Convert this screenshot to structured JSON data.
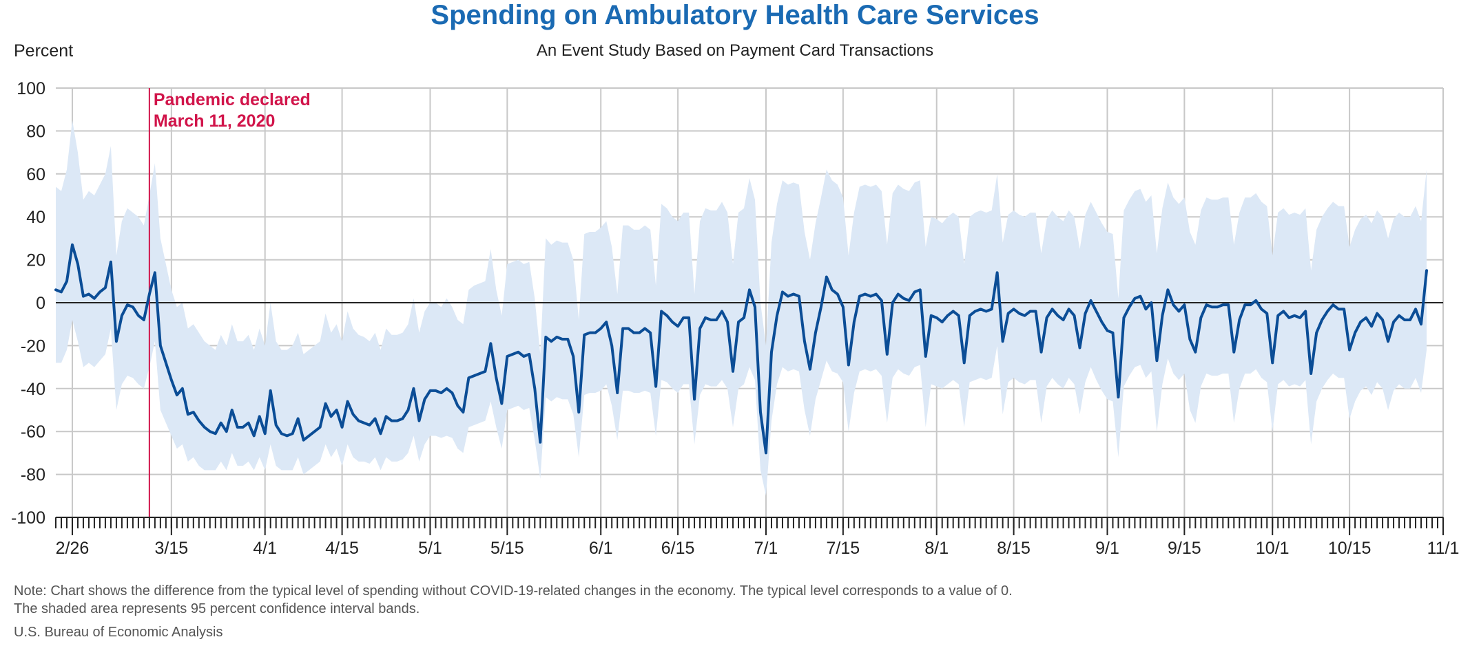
{
  "header": {
    "title": "Spending on Ambulatory Health Care Services",
    "subtitle": "An Event Study Based on Payment Card Transactions",
    "y_unit_label": "Percent"
  },
  "footer": {
    "note_line1": "Note: Chart shows the difference from the typical level of spending without COVID-19-related changes in the economy. The typical level corresponds to a value of 0.",
    "note_line2": "The shaded area represents 95 percent confidence interval bands.",
    "source": "U.S. Bureau of Economic Analysis"
  },
  "colors": {
    "title": "#1a6ab3",
    "line": "#0b4d96",
    "band": "#dce8f6",
    "annotation": "#d1144a",
    "grid": "#c8c8c8"
  },
  "chart_data": {
    "type": "line",
    "title": "Spending on Ambulatory Health Care Services",
    "subtitle": "An Event Study Based on Payment Card Transactions",
    "ylabel": "Percent",
    "xlabel": "",
    "ylim": [
      -100,
      100
    ],
    "yticks": [
      100,
      80,
      60,
      40,
      20,
      0,
      -20,
      -40,
      -60,
      -80,
      -100
    ],
    "x_start_date": "2020-02-23",
    "x_end_date": "2020-11-01",
    "xticks": [
      {
        "date": "2020-02-26",
        "label": "2/26"
      },
      {
        "date": "2020-03-15",
        "label": "3/15"
      },
      {
        "date": "2020-04-01",
        "label": "4/1"
      },
      {
        "date": "2020-04-15",
        "label": "4/15"
      },
      {
        "date": "2020-05-01",
        "label": "5/1"
      },
      {
        "date": "2020-05-15",
        "label": "5/15"
      },
      {
        "date": "2020-06-01",
        "label": "6/1"
      },
      {
        "date": "2020-06-15",
        "label": "6/15"
      },
      {
        "date": "2020-07-01",
        "label": "7/1"
      },
      {
        "date": "2020-07-15",
        "label": "7/15"
      },
      {
        "date": "2020-08-01",
        "label": "8/1"
      },
      {
        "date": "2020-08-15",
        "label": "8/15"
      },
      {
        "date": "2020-09-01",
        "label": "9/1"
      },
      {
        "date": "2020-09-15",
        "label": "9/15"
      },
      {
        "date": "2020-10-01",
        "label": "10/1"
      },
      {
        "date": "2020-10-15",
        "label": "10/15"
      },
      {
        "date": "2020-11-01",
        "label": "11/1"
      }
    ],
    "grid": true,
    "legend": "none",
    "annotation": {
      "date": "2020-03-11",
      "line1": "Pandemic declared",
      "line2": "March 11, 2020"
    },
    "series": [
      {
        "values": [
          6,
          5,
          10,
          27,
          18,
          3,
          4,
          2,
          5,
          7,
          19,
          -18,
          -6,
          -1,
          -2,
          -6,
          -8,
          4,
          14,
          -20,
          -28,
          -36,
          -43,
          -40,
          -52,
          -51,
          -55,
          -58,
          -60,
          -61,
          -56,
          -60,
          -50,
          -58,
          -58,
          -56,
          -62,
          -53,
          -61,
          -41,
          -57,
          -61,
          -62,
          -61,
          -54,
          -64,
          -62,
          -60,
          -58,
          -47,
          -53,
          -50,
          -58,
          -46,
          -52,
          -55,
          -56,
          -57,
          -54,
          -61,
          -53,
          -55,
          -55,
          -54,
          -50,
          -40,
          -55,
          -45,
          -41,
          -41,
          -42,
          -40,
          -42,
          -48,
          -51,
          -35,
          -34,
          -33,
          -32,
          -19,
          -35,
          -47,
          -25,
          -24,
          -23,
          -25,
          -24,
          -40,
          -65,
          -16,
          -18,
          -16,
          -17,
          -17,
          -25,
          -51,
          -15,
          -14,
          -14,
          -12,
          -9,
          -20,
          -42,
          -12,
          -12,
          -14,
          -14,
          -12,
          -14,
          -39,
          -4,
          -6,
          -9,
          -11,
          -7,
          -7,
          -45,
          -12,
          -7,
          -8,
          -8,
          -4,
          -9,
          -32,
          -9,
          -7,
          6,
          -2,
          -51,
          -70,
          -23,
          -6,
          5,
          3,
          4,
          3,
          -18,
          -31,
          -14,
          -2,
          12,
          6,
          4,
          -2,
          -29,
          -9,
          3,
          4,
          3,
          4,
          1,
          -24,
          0,
          4,
          2,
          1,
          5,
          6,
          -25,
          -6,
          -7,
          -9,
          -6,
          -4,
          -6,
          -28,
          -6,
          -4,
          -3,
          -4,
          -3,
          14,
          -18,
          -5,
          -3,
          -5,
          -6,
          -4,
          -4,
          -23,
          -7,
          -3,
          -6,
          -8,
          -3,
          -6,
          -21,
          -5,
          1,
          -4,
          -9,
          -13,
          -14,
          -44,
          -7,
          -2,
          2,
          3,
          -3,
          0,
          -27,
          -6,
          6,
          -1,
          -4,
          -1,
          -17,
          -23,
          -7,
          -1,
          -2,
          -2,
          -1,
          -1,
          -23,
          -8,
          -1,
          -1,
          1,
          -3,
          -5,
          -28,
          -6,
          -4,
          -7,
          -6,
          -7,
          -4,
          -33,
          -14,
          -8,
          -4,
          -1,
          -3,
          -3,
          -22,
          -14,
          -9,
          -7,
          -11,
          -5,
          -8,
          -18,
          -9,
          -6,
          -8,
          -8,
          -3,
          -10,
          15
        ],
        "ci_upper": [
          54,
          52,
          62,
          85,
          70,
          48,
          52,
          50,
          55,
          60,
          73,
          22,
          38,
          44,
          42,
          40,
          36,
          50,
          65,
          30,
          18,
          6,
          -2,
          0,
          -12,
          -10,
          -14,
          -18,
          -20,
          -22,
          -15,
          -20,
          -10,
          -18,
          -18,
          -15,
          -22,
          -12,
          -20,
          0,
          -18,
          -22,
          -22,
          -20,
          -14,
          -24,
          -22,
          -20,
          -18,
          -5,
          -14,
          -10,
          -18,
          -4,
          -12,
          -15,
          -16,
          -18,
          -14,
          -22,
          -12,
          -15,
          -15,
          -14,
          -10,
          2,
          -14,
          -4,
          0,
          0,
          -2,
          2,
          -2,
          -8,
          -10,
          6,
          8,
          9,
          10,
          25,
          6,
          -6,
          18,
          19,
          20,
          18,
          19,
          2,
          -24,
          30,
          27,
          29,
          28,
          28,
          20,
          -8,
          32,
          33,
          33,
          35,
          38,
          26,
          4,
          36,
          36,
          34,
          34,
          36,
          34,
          8,
          46,
          44,
          40,
          38,
          42,
          42,
          4,
          38,
          44,
          43,
          43,
          47,
          42,
          18,
          42,
          44,
          58,
          48,
          0,
          -20,
          28,
          46,
          57,
          55,
          56,
          55,
          33,
          20,
          37,
          49,
          62,
          57,
          55,
          49,
          22,
          42,
          54,
          55,
          54,
          55,
          52,
          27,
          51,
          55,
          53,
          52,
          56,
          57,
          26,
          40,
          39,
          37,
          40,
          42,
          40,
          18,
          40,
          42,
          43,
          42,
          43,
          60,
          28,
          41,
          43,
          41,
          40,
          42,
          42,
          23,
          39,
          43,
          40,
          38,
          43,
          40,
          25,
          41,
          47,
          42,
          37,
          33,
          32,
          2,
          43,
          48,
          52,
          53,
          47,
          50,
          23,
          44,
          56,
          49,
          46,
          49,
          33,
          27,
          43,
          49,
          48,
          48,
          49,
          49,
          27,
          42,
          49,
          49,
          51,
          47,
          45,
          22,
          42,
          44,
          41,
          42,
          41,
          44,
          15,
          34,
          40,
          44,
          47,
          45,
          45,
          26,
          34,
          39,
          41,
          37,
          43,
          40,
          30,
          39,
          42,
          40,
          40,
          45,
          38,
          62
        ],
        "ci_lower": [
          -28,
          -28,
          -22,
          -8,
          -18,
          -30,
          -28,
          -30,
          -27,
          -24,
          -12,
          -50,
          -38,
          -34,
          -35,
          -38,
          -40,
          -30,
          -18,
          -50,
          -56,
          -62,
          -68,
          -66,
          -74,
          -72,
          -76,
          -78,
          -78,
          -78,
          -74,
          -78,
          -70,
          -76,
          -76,
          -74,
          -78,
          -72,
          -78,
          -66,
          -76,
          -78,
          -78,
          -78,
          -72,
          -80,
          -78,
          -76,
          -74,
          -66,
          -72,
          -68,
          -76,
          -66,
          -72,
          -74,
          -74,
          -75,
          -72,
          -78,
          -72,
          -74,
          -74,
          -73,
          -70,
          -62,
          -74,
          -66,
          -62,
          -62,
          -63,
          -62,
          -63,
          -68,
          -70,
          -58,
          -57,
          -56,
          -55,
          -46,
          -58,
          -68,
          -50,
          -49,
          -48,
          -50,
          -49,
          -64,
          -82,
          -44,
          -46,
          -44,
          -45,
          -45,
          -52,
          -72,
          -43,
          -42,
          -42,
          -41,
          -38,
          -48,
          -64,
          -41,
          -41,
          -42,
          -42,
          -41,
          -42,
          -62,
          -36,
          -37,
          -40,
          -42,
          -38,
          -38,
          -66,
          -43,
          -38,
          -39,
          -39,
          -36,
          -40,
          -58,
          -40,
          -38,
          -30,
          -36,
          -78,
          -90,
          -55,
          -38,
          -30,
          -32,
          -31,
          -32,
          -50,
          -62,
          -45,
          -36,
          -27,
          -32,
          -33,
          -37,
          -60,
          -42,
          -32,
          -31,
          -32,
          -31,
          -34,
          -56,
          -35,
          -31,
          -33,
          -34,
          -30,
          -29,
          -58,
          -38,
          -39,
          -40,
          -38,
          -36,
          -38,
          -58,
          -37,
          -36,
          -35,
          -36,
          -35,
          -20,
          -52,
          -37,
          -35,
          -37,
          -38,
          -36,
          -36,
          -56,
          -39,
          -35,
          -38,
          -40,
          -35,
          -38,
          -52,
          -37,
          -30,
          -36,
          -41,
          -45,
          -46,
          -72,
          -39,
          -34,
          -30,
          -29,
          -35,
          -32,
          -60,
          -38,
          -26,
          -33,
          -36,
          -33,
          -50,
          -56,
          -39,
          -33,
          -34,
          -34,
          -33,
          -33,
          -56,
          -40,
          -33,
          -33,
          -31,
          -35,
          -37,
          -60,
          -38,
          -36,
          -39,
          -38,
          -39,
          -36,
          -66,
          -46,
          -40,
          -36,
          -33,
          -35,
          -35,
          -54,
          -46,
          -41,
          -39,
          -43,
          -37,
          -40,
          -50,
          -41,
          -38,
          -40,
          -40,
          -35,
          -42,
          -22
        ]
      }
    ]
  }
}
